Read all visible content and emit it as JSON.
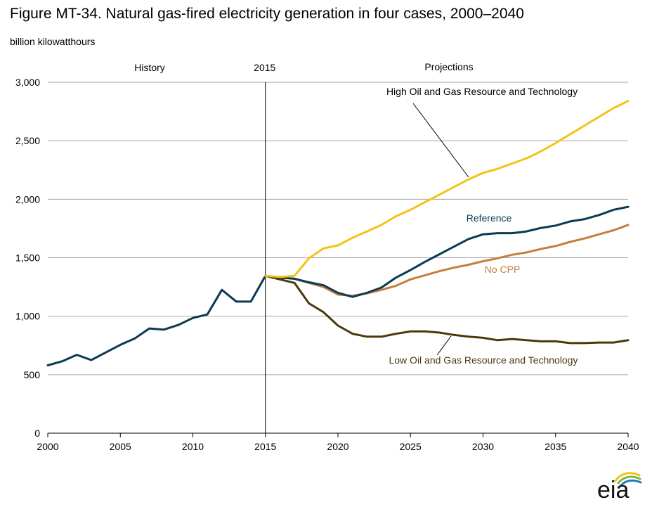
{
  "page": {
    "title": "Figure MT-34. Natural gas-fired electricity generation in four cases, 2000–2040",
    "units": "billion kilowatthours"
  },
  "chart_data": {
    "type": "line",
    "xlim": [
      2000,
      2040
    ],
    "ylim": [
      0,
      3000
    ],
    "xticks": [
      2000,
      2005,
      2010,
      2015,
      2020,
      2025,
      2030,
      2035,
      2040
    ],
    "yticks": [
      0,
      500,
      1000,
      1500,
      2000,
      2500,
      3000
    ],
    "ytick_labels": [
      "0",
      "500",
      "1,000",
      "1,500",
      "2,000",
      "2,500",
      "3,000"
    ],
    "grid": "horizontal",
    "divider": {
      "x": 2015,
      "label": "2015"
    },
    "region_labels": {
      "history": "History",
      "projections": "Projections"
    },
    "history": {
      "color": "#0b3a52",
      "x": [
        2000,
        2001,
        2002,
        2003,
        2004,
        2005,
        2006,
        2007,
        2008,
        2009,
        2010,
        2011,
        2012,
        2013,
        2014,
        2015
      ],
      "y": [
        580,
        615,
        670,
        625,
        690,
        755,
        810,
        895,
        885,
        925,
        985,
        1015,
        1225,
        1125,
        1125,
        1345
      ]
    },
    "series": [
      {
        "name": "High Oil and Gas Resource and Technology",
        "color": "#f3c317",
        "x": [
          2015,
          2016,
          2017,
          2018,
          2019,
          2020,
          2021,
          2022,
          2023,
          2024,
          2025,
          2026,
          2027,
          2028,
          2029,
          2030,
          2031,
          2032,
          2033,
          2034,
          2035,
          2036,
          2037,
          2038,
          2039,
          2040
        ],
        "y": [
          1345,
          1335,
          1345,
          1495,
          1580,
          1605,
          1670,
          1725,
          1780,
          1855,
          1910,
          1975,
          2040,
          2105,
          2170,
          2225,
          2260,
          2305,
          2350,
          2410,
          2480,
          2555,
          2630,
          2705,
          2780,
          2840
        ]
      },
      {
        "name": "Reference",
        "color": "#0b3a52",
        "x": [
          2015,
          2016,
          2017,
          2018,
          2019,
          2020,
          2021,
          2022,
          2023,
          2024,
          2025,
          2026,
          2027,
          2028,
          2029,
          2030,
          2031,
          2032,
          2033,
          2034,
          2035,
          2036,
          2037,
          2038,
          2039,
          2040
        ],
        "y": [
          1345,
          1330,
          1320,
          1290,
          1265,
          1200,
          1165,
          1200,
          1245,
          1330,
          1395,
          1465,
          1530,
          1595,
          1660,
          1700,
          1710,
          1710,
          1725,
          1755,
          1775,
          1810,
          1830,
          1865,
          1910,
          1935
        ]
      },
      {
        "name": "No CPP",
        "color": "#c57f3a",
        "x": [
          2015,
          2016,
          2017,
          2018,
          2019,
          2020,
          2021,
          2022,
          2023,
          2024,
          2025,
          2026,
          2027,
          2028,
          2029,
          2030,
          2031,
          2032,
          2033,
          2034,
          2035,
          2036,
          2037,
          2038,
          2039,
          2040
        ],
        "y": [
          1345,
          1330,
          1320,
          1285,
          1250,
          1185,
          1175,
          1195,
          1225,
          1260,
          1315,
          1350,
          1385,
          1415,
          1440,
          1470,
          1495,
          1525,
          1545,
          1575,
          1600,
          1635,
          1665,
          1700,
          1735,
          1780
        ]
      },
      {
        "name": "Low Oil and Gas Resource and Technology",
        "color": "#4a3a0a",
        "x": [
          2015,
          2016,
          2017,
          2018,
          2019,
          2020,
          2021,
          2022,
          2023,
          2024,
          2025,
          2026,
          2027,
          2028,
          2029,
          2030,
          2031,
          2032,
          2033,
          2034,
          2035,
          2036,
          2037,
          2038,
          2039,
          2040
        ],
        "y": [
          1345,
          1315,
          1285,
          1110,
          1035,
          920,
          850,
          825,
          825,
          850,
          870,
          870,
          860,
          840,
          825,
          815,
          795,
          805,
          795,
          785,
          785,
          770,
          770,
          775,
          775,
          795
        ]
      }
    ],
    "annotations": [
      {
        "text": "High Oil and Gas Resource and Technology",
        "color": "#000000"
      },
      {
        "text": "Reference",
        "color": "#0b3a52"
      },
      {
        "text": "No CPP",
        "color": "#c57f3a"
      },
      {
        "text": "Low Oil and Gas Resource and Technology",
        "color": "#4a3a0a"
      }
    ]
  },
  "logo": {
    "text": "eia",
    "colors": [
      "#f3c317",
      "#7ab648",
      "#1f7ab7"
    ]
  }
}
